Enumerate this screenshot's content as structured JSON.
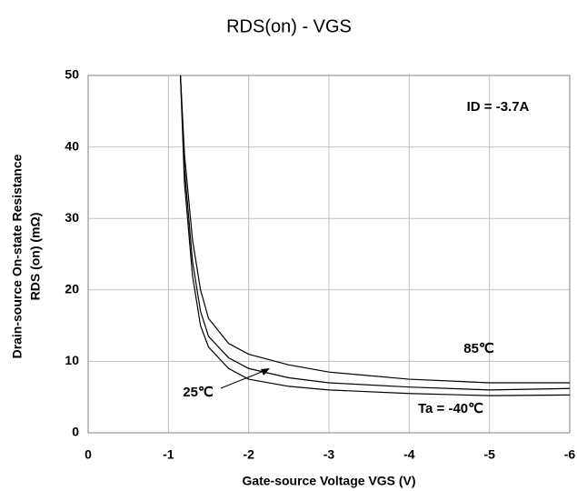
{
  "chart_data": {
    "type": "line",
    "title": "RDS(on) - VGS",
    "xlabel": "Gate-source  Voltage VGS (V)",
    "ylabel": [
      "Drain-source On-state Resistance",
      "RDS (on) (mΩ)"
    ],
    "annotations": [
      "ID = -3.7A",
      "85℃",
      "25℃",
      "Ta = -40℃"
    ],
    "x": [
      -1.15,
      -1.2,
      -1.3,
      -1.4,
      -1.5,
      -1.75,
      -2,
      -2.5,
      -3,
      -4,
      -5,
      -6
    ],
    "series": [
      {
        "name": "Ta = -40℃",
        "color": "#000000",
        "values": [
          50,
          35,
          22,
          15,
          12,
          9,
          7.5,
          6.5,
          6,
          5.5,
          5.2,
          5.3
        ]
      },
      {
        "name": "25℃",
        "color": "#000000",
        "values": [
          50,
          37,
          24,
          17,
          13.5,
          10.5,
          9,
          7.7,
          7,
          6.4,
          6,
          6.2
        ]
      },
      {
        "name": "85℃",
        "color": "#000000",
        "values": [
          50,
          39,
          27,
          20,
          16,
          12.5,
          11,
          9.5,
          8.5,
          7.5,
          7,
          7
        ]
      }
    ],
    "xlim": [
      0,
      -6
    ],
    "xticks": [
      0,
      -1,
      -2,
      -3,
      -4,
      -5,
      -6
    ],
    "ylim": [
      0,
      50
    ],
    "yticks": [
      0,
      10,
      20,
      30,
      40,
      50
    ],
    "grid": true
  }
}
